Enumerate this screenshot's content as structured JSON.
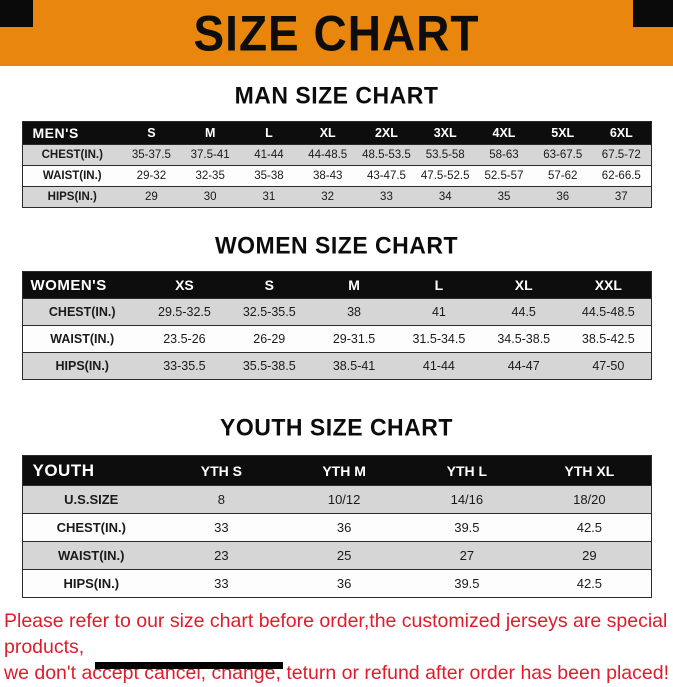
{
  "banner": {
    "title": "SIZE CHART"
  },
  "sections": [
    {
      "heading": "MAN SIZE CHART",
      "table": {
        "header": [
          "MEN'S",
          "S",
          "M",
          "L",
          "XL",
          "2XL",
          "3XL",
          "4XL",
          "5XL",
          "6XL"
        ],
        "rows": [
          [
            "CHEST(IN.)",
            "35-37.5",
            "37.5-41",
            "41-44",
            "44-48.5",
            "48.5-53.5",
            "53.5-58",
            "58-63",
            "63-67.5",
            "67.5-72"
          ],
          [
            "WAIST(IN.)",
            "29-32",
            "32-35",
            "35-38",
            "38-43",
            "43-47.5",
            "47.5-52.5",
            "52.5-57",
            "57-62",
            "62-66.5"
          ],
          [
            "HIPS(IN.)",
            "29",
            "30",
            "31",
            "32",
            "33",
            "34",
            "35",
            "36",
            "37"
          ]
        ]
      }
    },
    {
      "heading": "WOMEN SIZE CHART",
      "table": {
        "header": [
          "WOMEN'S",
          "XS",
          "S",
          "M",
          "L",
          "XL",
          "XXL"
        ],
        "rows": [
          [
            "CHEST(IN.)",
            "29.5-32.5",
            "32.5-35.5",
            "38",
            "41",
            "44.5",
            "44.5-48.5"
          ],
          [
            "WAIST(IN.)",
            "23.5-26",
            "26-29",
            "29-31.5",
            "31.5-34.5",
            "34.5-38.5",
            "38.5-42.5"
          ],
          [
            "HIPS(IN.)",
            "33-35.5",
            "35.5-38.5",
            "38.5-41",
            "41-44",
            "44-47",
            "47-50"
          ]
        ]
      }
    },
    {
      "heading": "YOUTH SIZE CHART",
      "table": {
        "header": [
          "YOUTH",
          "YTH S",
          "YTH M",
          "YTH L",
          "YTH XL"
        ],
        "rows": [
          [
            "U.S.SIZE",
            "8",
            "10/12",
            "14/16",
            "18/20"
          ],
          [
            "CHEST(IN.)",
            "33",
            "36",
            "39.5",
            "42.5"
          ],
          [
            "WAIST(IN.)",
            "23",
            "25",
            "27",
            "29"
          ],
          [
            "HIPS(IN.)",
            "33",
            "36",
            "39.5",
            "42.5"
          ]
        ]
      }
    }
  ],
  "footer": {
    "line1": "Please refer to our size chart before order,the customized jerseys are special products,",
    "line2": "we don't accept cancel, change, teturn or refund after order has been placed!"
  },
  "colors": {
    "banner_bg": "#E8860D",
    "title_color": "#0D0D0D",
    "header_bg": "#0D0D0D",
    "header_text": "#FFFFFF",
    "row_alt_bg": "#D6D6D6",
    "footer_text": "#E31A2B"
  }
}
